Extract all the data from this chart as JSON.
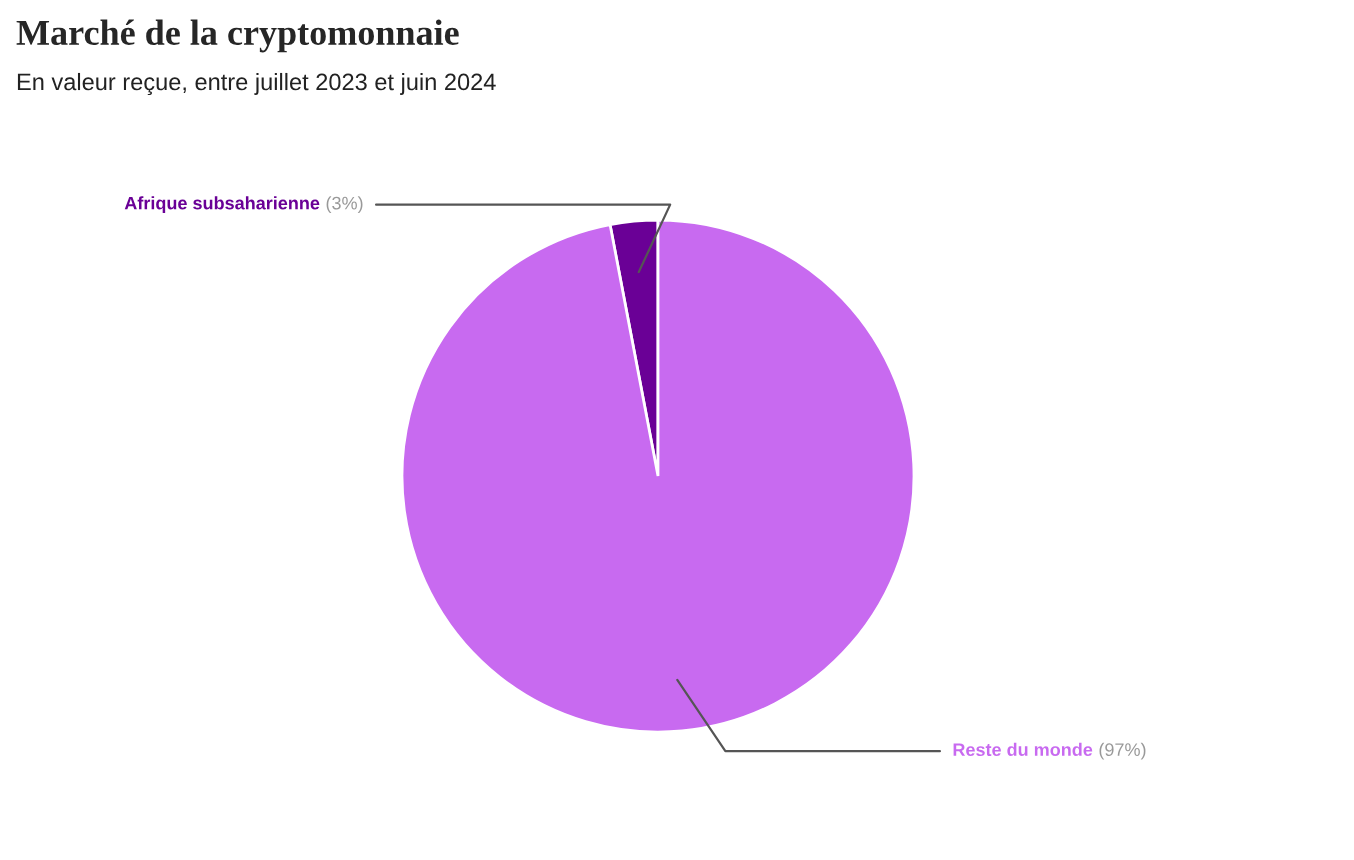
{
  "chart_data": {
    "type": "pie",
    "title": "Marché de la cryptomonnaie",
    "subtitle": "En valeur reçue, entre juillet 2023 et juin 2024",
    "categories": [
      "Afrique subsaharienne",
      "Reste du monde"
    ],
    "values": [
      3,
      97
    ],
    "value_labels": [
      "(3%)",
      "(97%)"
    ],
    "colors": [
      "#6a0096",
      "#c86af0"
    ],
    "legend": false
  }
}
